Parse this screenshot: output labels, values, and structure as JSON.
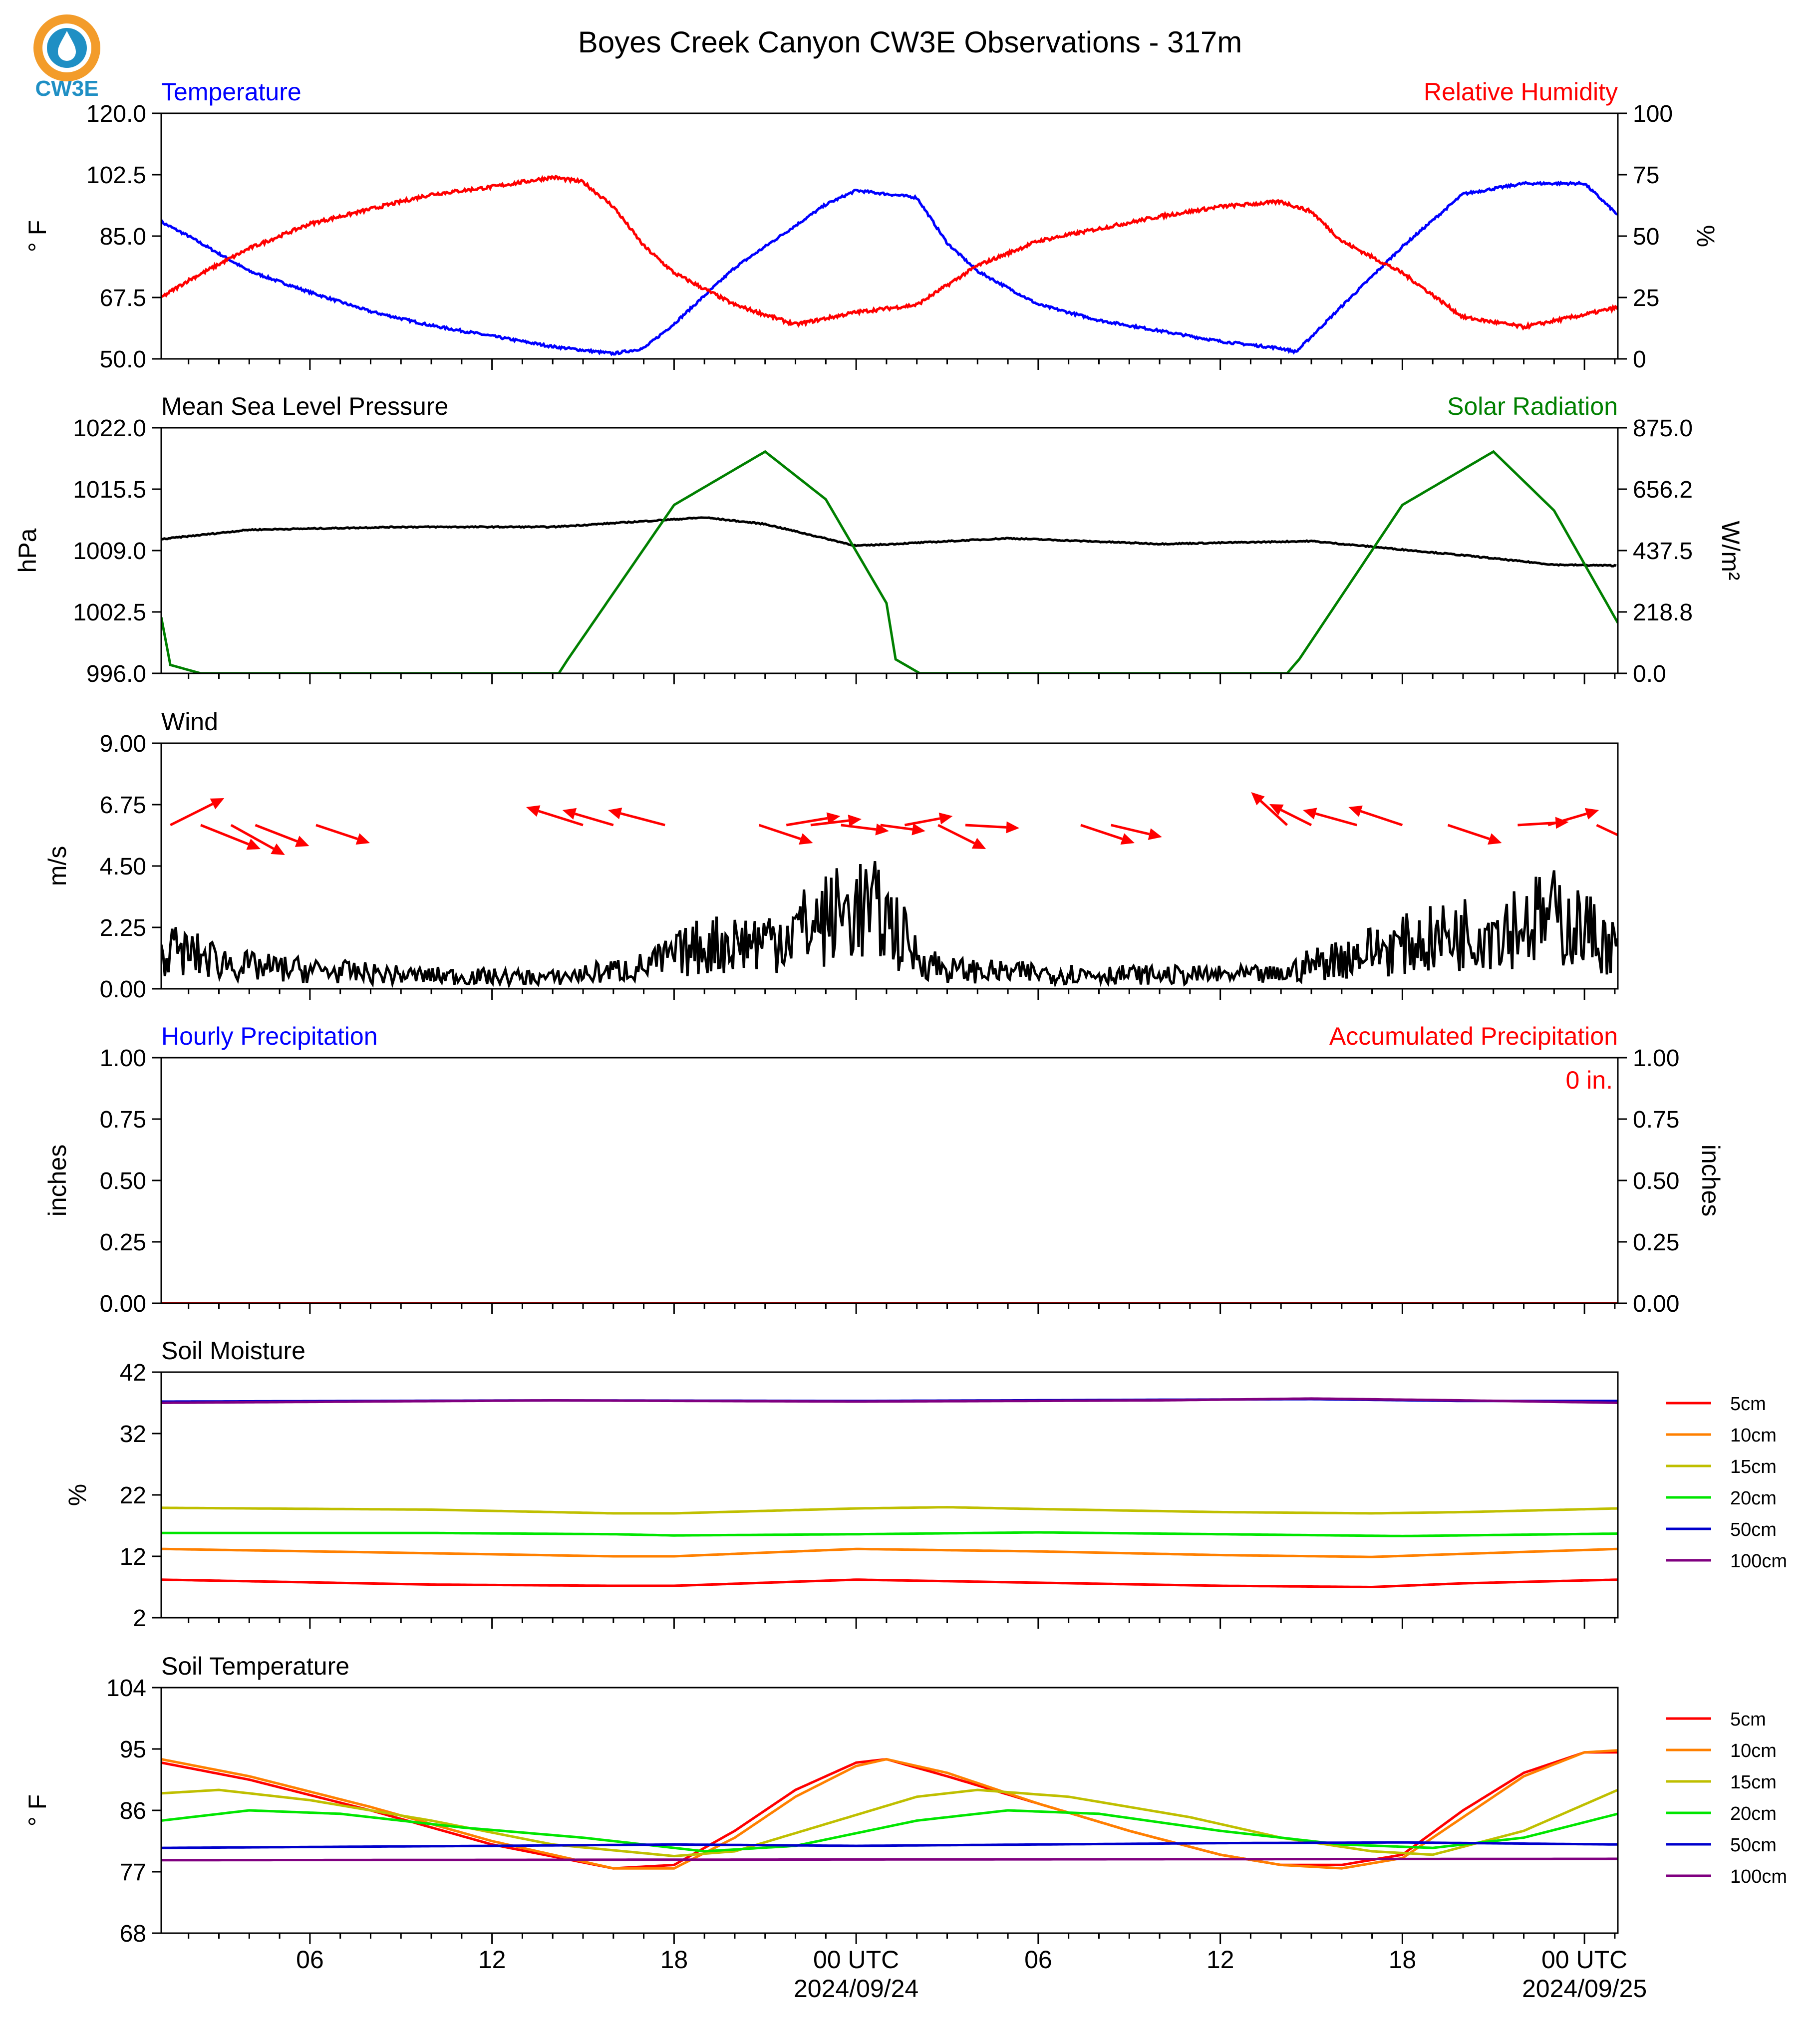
{
  "title": "Boyes Creek Canyon CW3E Observations - 317m",
  "logo": {
    "text": "CW3E",
    "icon": "cw3e-drop-logo",
    "ring_color": "#f39c2a",
    "drop_color": "#1f8fc4"
  },
  "x_axis": {
    "range_hours": [
      -22.9,
      25.1
    ],
    "ticks": [
      {
        "h": -18,
        "label": "06"
      },
      {
        "h": -12,
        "label": "12"
      },
      {
        "h": -6,
        "label": "18"
      },
      {
        "h": 0,
        "label": "00 UTC",
        "date": "2024/09/24"
      },
      {
        "h": 6,
        "label": "06"
      },
      {
        "h": 12,
        "label": "12"
      },
      {
        "h": 18,
        "label": "18"
      },
      {
        "h": 24,
        "label": "00 UTC",
        "date": "2024/09/25"
      }
    ]
  },
  "chart_data": [
    {
      "type": "line",
      "panel": "temperature-rh",
      "left_title": "Temperature",
      "left_title_color": "#0000ff",
      "right_title": "Relative Humidity",
      "right_title_color": "#ff0000",
      "ylabel": "° F",
      "ylim": [
        50,
        120
      ],
      "yticks": [
        "50.0",
        "67.5",
        "85.0",
        "102.5",
        "120.0"
      ],
      "ylabel_right": "%",
      "ylim_right": [
        0,
        100
      ],
      "yticks_right": [
        "0",
        "25",
        "50",
        "75",
        "100"
      ],
      "series": [
        {
          "name": "Temperature",
          "axis": "left",
          "color": "#0000ff",
          "x": [
            -22.9,
            -22,
            -20,
            -18,
            -16,
            -14,
            -12,
            -10,
            -9,
            -8,
            -7,
            -6,
            -4,
            -2,
            -1,
            0,
            2,
            3,
            4,
            6,
            8,
            10,
            12,
            14,
            14.5,
            16,
            18,
            20,
            22,
            24,
            25.1
          ],
          "y": [
            89,
            85,
            75,
            69,
            63.5,
            59.5,
            56.5,
            53.5,
            52.5,
            51.5,
            53,
            60,
            76,
            88,
            94,
            98,
            96,
            83,
            75,
            65.5,
            61,
            58,
            55,
            53,
            52,
            65,
            82,
            97,
            100,
            100,
            91
          ]
        },
        {
          "name": "Relative Humidity",
          "axis": "right",
          "color": "#ff0000",
          "x": [
            -22.9,
            -22,
            -20,
            -18,
            -16,
            -14,
            -12,
            -10,
            -9,
            -8,
            -7,
            -6,
            -4,
            -2,
            0,
            2,
            4,
            6,
            8,
            10,
            12,
            14,
            15,
            16,
            18,
            20,
            22,
            24,
            25.1
          ],
          "y": [
            25,
            32,
            45,
            55,
            61,
            67,
            70,
            74,
            72,
            62,
            46,
            35,
            22,
            14,
            19,
            22,
            38,
            48,
            53,
            58,
            62,
            64,
            60,
            48,
            35,
            17,
            13,
            18,
            21
          ]
        }
      ]
    },
    {
      "type": "line",
      "panel": "pressure-solar",
      "left_title": "Mean Sea Level Pressure",
      "left_title_color": "#000000",
      "right_title": "Solar Radiation",
      "right_title_color": "#008000",
      "ylabel": "hPa",
      "ylim": [
        996,
        1022
      ],
      "yticks": [
        "996.0",
        "1002.5",
        "1009.0",
        "1015.5",
        "1022.0"
      ],
      "ylabel_right": "W/m²",
      "ylim_right": [
        0,
        875
      ],
      "yticks_right": [
        "0.0",
        "218.8",
        "437.5",
        "656.2",
        "875.0"
      ],
      "series": [
        {
          "name": "Mean Sea Level Pressure",
          "axis": "left",
          "color": "#000000",
          "x": [
            -22.9,
            -20,
            -15,
            -10,
            -5,
            -3,
            0,
            5,
            10,
            15,
            20,
            23,
            25.1
          ],
          "y": [
            1010.2,
            1011.2,
            1011.5,
            1011.5,
            1012.5,
            1011.8,
            1009.5,
            1010.3,
            1009.7,
            1010,
            1008.5,
            1007.5,
            1007.4
          ]
        },
        {
          "name": "Solar Radiation",
          "axis": "right",
          "color": "#008000",
          "x": [
            -22.9,
            -22.6,
            -21.6,
            -9.8,
            -9.5,
            -6,
            -3,
            -1,
            1,
            1.3,
            2.1,
            14.2,
            14.6,
            18,
            21,
            23,
            25.1
          ],
          "y": [
            200,
            30,
            0,
            0,
            50,
            600,
            790,
            620,
            250,
            50,
            0,
            0,
            50,
            600,
            790,
            580,
            180
          ]
        }
      ]
    },
    {
      "type": "line",
      "panel": "wind",
      "left_title": "Wind",
      "left_title_color": "#000000",
      "ylabel": "m/s",
      "ylim": [
        0,
        9
      ],
      "yticks": [
        "0.00",
        "2.25",
        "4.50",
        "6.75",
        "9.00"
      ],
      "series": [
        {
          "name": "Wind",
          "color": "#000000",
          "x": [
            -22.9,
            -20,
            -15,
            -10,
            -7,
            -5,
            -3,
            -1,
            0,
            1,
            2,
            3,
            5,
            10,
            14,
            15,
            17,
            19,
            21,
            23,
            24,
            25.1
          ],
          "y": [
            1.5,
            0.8,
            0.5,
            0.4,
            0.8,
            1.6,
            1.8,
            2.5,
            3.0,
            2.6,
            1.2,
            0.7,
            0.6,
            0.5,
            0.5,
            0.9,
            1.4,
            1.8,
            2.3,
            2.6,
            2.2,
            1.4
          ]
        }
      ],
      "arrows_color": "#ff0000",
      "arrows": [
        {
          "x": -22.6,
          "u": 1.8,
          "v": 0.9
        },
        {
          "x": -21.6,
          "u": 2.0,
          "v": -0.8
        },
        {
          "x": -20.6,
          "u": 1.8,
          "v": -1.0
        },
        {
          "x": -19.8,
          "u": 1.8,
          "v": -0.7
        },
        {
          "x": -17.8,
          "u": 1.8,
          "v": -0.6
        },
        {
          "x": -9.0,
          "u": -1.9,
          "v": 0.6
        },
        {
          "x": -8.0,
          "u": -1.7,
          "v": 0.5
        },
        {
          "x": -6.3,
          "u": -1.9,
          "v": 0.5
        },
        {
          "x": -3.2,
          "u": 1.8,
          "v": -0.6
        },
        {
          "x": -2.3,
          "u": 1.8,
          "v": 0.3
        },
        {
          "x": -1.5,
          "u": 1.7,
          "v": 0.2
        },
        {
          "x": -0.5,
          "u": 1.6,
          "v": -0.2
        },
        {
          "x": 0.8,
          "u": 1.5,
          "v": -0.2
        },
        {
          "x": 1.6,
          "u": 1.6,
          "v": 0.3
        },
        {
          "x": 2.7,
          "u": 1.6,
          "v": -0.8
        },
        {
          "x": 3.6,
          "u": 1.8,
          "v": -0.1
        },
        {
          "x": 7.4,
          "u": 1.8,
          "v": -0.6
        },
        {
          "x": 8.4,
          "u": 1.7,
          "v": -0.4
        },
        {
          "x": 14.2,
          "u": -1.2,
          "v": 1.1
        },
        {
          "x": 15.0,
          "u": -1.4,
          "v": 0.7
        },
        {
          "x": 16.5,
          "u": -1.8,
          "v": 0.5
        },
        {
          "x": 18.0,
          "u": -1.8,
          "v": 0.6
        },
        {
          "x": 19.5,
          "u": 1.8,
          "v": -0.6
        },
        {
          "x": 21.8,
          "u": 1.7,
          "v": 0.1
        },
        {
          "x": 22.8,
          "u": 1.7,
          "v": 0.5
        },
        {
          "x": 24.4,
          "u": 1.7,
          "v": -0.8
        },
        {
          "x": 25.1,
          "u": 0.8,
          "v": 0.0
        }
      ]
    },
    {
      "type": "line",
      "panel": "precipitation",
      "left_title": "Hourly Precipitation",
      "left_title_color": "#0000ff",
      "right_title": "Accumulated Precipitation",
      "right_title_color": "#ff0000",
      "annotation": "0 in.",
      "ylabel": "inches",
      "ylim": [
        0,
        1
      ],
      "yticks": [
        "0.00",
        "0.25",
        "0.50",
        "0.75",
        "1.00"
      ],
      "ylabel_right": "inches",
      "ylim_right": [
        0,
        1
      ],
      "yticks_right": [
        "0.00",
        "0.25",
        "0.50",
        "0.75",
        "1.00"
      ],
      "series": [
        {
          "name": "Hourly Precipitation",
          "axis": "left",
          "color": "#0000ff",
          "x": [
            -22.9,
            25.1
          ],
          "y": [
            0,
            0
          ]
        },
        {
          "name": "Accumulated Precipitation",
          "axis": "right",
          "color": "#ff0000",
          "x": [
            -22.9,
            25.1
          ],
          "y": [
            0,
            0
          ]
        }
      ]
    },
    {
      "type": "line",
      "panel": "soil-moisture",
      "left_title": "Soil Moisture",
      "left_title_color": "#000000",
      "ylabel": "%",
      "ylim": [
        2,
        42
      ],
      "yticks": [
        "2",
        "12",
        "22",
        "32",
        "42"
      ],
      "legend_position": "right",
      "series": [
        {
          "name": "5cm",
          "color": "#ff0000",
          "x": [
            -22.9,
            -14,
            -8,
            -6,
            0,
            6,
            12,
            17,
            20,
            25.1
          ],
          "y": [
            8.2,
            7.4,
            7.2,
            7.2,
            8.2,
            7.7,
            7.2,
            7.0,
            7.6,
            8.2
          ]
        },
        {
          "name": "10cm",
          "color": "#ff8000",
          "x": [
            -22.9,
            -14,
            -8,
            -6,
            0,
            6,
            12,
            17,
            20,
            25.1
          ],
          "y": [
            13.2,
            12.5,
            12.0,
            12.0,
            13.2,
            12.8,
            12.2,
            11.9,
            12.4,
            13.2
          ]
        },
        {
          "name": "15cm",
          "color": "#bfbf00",
          "x": [
            -22.9,
            -14,
            -8,
            -6,
            0,
            3,
            6,
            12,
            17,
            20,
            25.1
          ],
          "y": [
            19.9,
            19.6,
            19.0,
            19.0,
            19.8,
            20.0,
            19.7,
            19.2,
            19.0,
            19.2,
            19.8
          ]
        },
        {
          "name": "20cm",
          "color": "#00e600",
          "x": [
            -22.9,
            -14,
            -8,
            -6,
            0,
            6,
            12,
            18,
            25.1
          ],
          "y": [
            15.8,
            15.8,
            15.6,
            15.4,
            15.6,
            15.9,
            15.6,
            15.3,
            15.7
          ]
        },
        {
          "name": "50cm",
          "color": "#0000cc",
          "x": [
            -22.9,
            -10,
            0,
            10,
            15,
            20,
            25.1
          ],
          "y": [
            37.2,
            37.4,
            37.3,
            37.5,
            37.6,
            37.3,
            37.3
          ]
        },
        {
          "name": "100cm",
          "color": "#800080",
          "x": [
            -22.9,
            -10,
            0,
            10,
            15,
            20,
            25.1
          ],
          "y": [
            37.0,
            37.4,
            37.2,
            37.4,
            37.7,
            37.4,
            37.0
          ]
        }
      ]
    },
    {
      "type": "line",
      "panel": "soil-temperature",
      "left_title": "Soil Temperature",
      "left_title_color": "#000000",
      "ylabel": "° F",
      "ylim": [
        68,
        104
      ],
      "yticks": [
        "68",
        "77",
        "86",
        "95",
        "104"
      ],
      "legend_position": "right",
      "series": [
        {
          "name": "5cm",
          "color": "#ff0000",
          "x": [
            -22.9,
            -20,
            -16,
            -12,
            -8,
            -6,
            -4,
            -2,
            0,
            1,
            3,
            6,
            9,
            12,
            14,
            16,
            18,
            20,
            22,
            24,
            25.1
          ],
          "y": [
            93,
            90.5,
            86,
            81,
            77.5,
            78,
            83,
            89,
            93,
            93.5,
            91,
            87,
            83,
            79.5,
            78,
            78,
            79.5,
            86,
            91.5,
            94.5,
            94.5
          ]
        },
        {
          "name": "10cm",
          "color": "#ff8000",
          "x": [
            -22.9,
            -20,
            -16,
            -12,
            -8,
            -6,
            -4,
            -2,
            0,
            1,
            3,
            6,
            9,
            12,
            14,
            16,
            18,
            20,
            22,
            24,
            25.1
          ],
          "y": [
            93.5,
            91,
            86.5,
            81.5,
            77.5,
            77.5,
            82,
            88,
            92.5,
            93.5,
            91.5,
            87,
            83,
            79.5,
            78,
            77.5,
            79,
            85,
            91,
            94.5,
            94.8
          ]
        },
        {
          "name": "15cm",
          "color": "#bfbf00",
          "x": [
            -22.9,
            -21,
            -18,
            -14,
            -10,
            -6,
            -4,
            -1,
            2,
            4,
            7,
            11,
            14,
            17,
            19,
            22,
            25.1
          ],
          "y": [
            88.5,
            89,
            87.5,
            84.5,
            81,
            79.3,
            80,
            84,
            88,
            89,
            88,
            85,
            82,
            80,
            79.5,
            83,
            89
          ]
        },
        {
          "name": "20cm",
          "color": "#00e600",
          "x": [
            -22.9,
            -20,
            -17,
            -13,
            -9,
            -5,
            -2,
            2,
            5,
            8,
            12,
            16,
            19,
            22,
            25.1
          ],
          "y": [
            84.5,
            86,
            85.5,
            83.5,
            82,
            80,
            80.8,
            84.5,
            86,
            85.5,
            83,
            81,
            80.5,
            82,
            85.5
          ]
        },
        {
          "name": "50cm",
          "color": "#0000cc",
          "x": [
            -22.9,
            -12,
            -6,
            0,
            6,
            12,
            18,
            25.1
          ],
          "y": [
            80.5,
            80.8,
            81,
            80.8,
            81,
            81.2,
            81.3,
            81
          ]
        },
        {
          "name": "100cm",
          "color": "#800080",
          "x": [
            -22.9,
            0,
            25.1
          ],
          "y": [
            78.7,
            78.8,
            78.9
          ]
        }
      ]
    }
  ]
}
